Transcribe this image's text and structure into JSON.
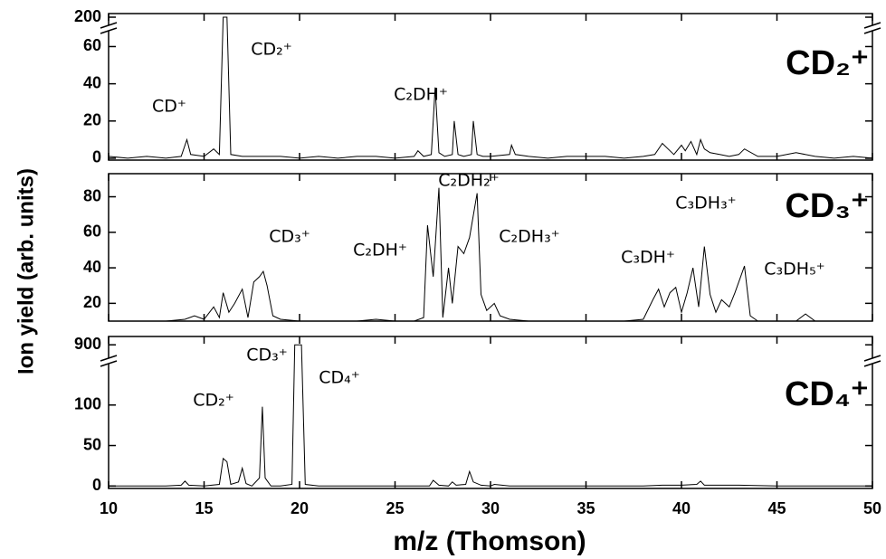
{
  "chart_data": [
    {
      "type": "line",
      "title": "CD₂⁺",
      "annotations": [
        "CD⁺",
        "CD₂⁺",
        "C₂DH⁺"
      ],
      "xlim": [
        10,
        50
      ],
      "xticks": [
        10,
        15,
        20,
        25,
        30,
        35,
        40,
        45,
        50
      ],
      "ylim": [
        -1,
        202
      ],
      "axis_break": [
        68,
        196
      ],
      "yticks": [
        0,
        20,
        40,
        60,
        200
      ],
      "x": [
        10,
        11,
        12,
        13,
        13.8,
        14.1,
        14.3,
        15,
        15.5,
        15.8,
        16,
        16.2,
        16.4,
        17,
        18,
        19,
        20,
        21,
        22,
        23,
        24,
        25,
        26,
        26.2,
        26.5,
        26.9,
        27.1,
        27.3,
        27.6,
        28,
        28.1,
        28.3,
        28.6,
        29,
        29.1,
        29.3,
        29.6,
        30,
        31,
        31.1,
        31.3,
        32,
        33,
        34,
        35,
        36,
        37,
        38,
        38.6,
        39,
        39.3,
        39.6,
        40,
        40.2,
        40.5,
        40.8,
        41,
        41.2,
        41.5,
        42,
        42.5,
        43,
        43.3,
        44,
        45,
        46,
        47,
        48,
        49,
        50
      ],
      "series": [
        {
          "color": "#000000",
          "values": [
            1,
            0,
            1,
            0,
            1,
            10,
            2,
            1,
            5,
            2,
            200,
            200,
            2,
            1,
            1,
            1,
            0,
            1,
            0,
            1,
            1,
            0,
            1,
            4,
            1,
            2,
            38,
            3,
            1,
            2,
            20,
            2,
            1,
            2,
            20,
            2,
            1,
            1,
            2,
            7,
            2,
            1,
            0,
            1,
            1,
            1,
            0,
            1,
            2,
            8,
            5,
            2,
            7,
            4,
            9,
            2,
            10,
            5,
            3,
            2,
            1,
            2,
            5,
            1,
            1,
            3,
            1,
            0,
            1,
            0
          ]
        }
      ]
    },
    {
      "type": "line",
      "title": "CD₃⁺",
      "ylabel": "Ion yield (arb. units)",
      "annotations": [
        "CD₃⁺",
        "C₂DH⁺",
        "C₂DH₂⁺",
        "C₂DH₃⁺",
        "C₃DH⁺",
        "C₃DH₃⁺",
        "C₃DH₅⁺"
      ],
      "xlim": [
        10,
        50
      ],
      "xticks": [
        10,
        15,
        20,
        25,
        30,
        35,
        40,
        45,
        50
      ],
      "ylim": [
        10,
        93
      ],
      "yticks": [
        20,
        40,
        60,
        80
      ],
      "x": [
        10,
        11,
        12,
        13,
        14,
        14.5,
        15,
        15.5,
        15.8,
        16,
        16.3,
        16.6,
        17,
        17.3,
        17.6,
        17.9,
        18.1,
        18.3,
        18.6,
        19,
        20,
        21,
        22,
        23,
        24,
        25,
        26,
        26.5,
        26.7,
        27,
        27.3,
        27.5,
        27.8,
        28,
        28.3,
        28.6,
        28.9,
        29.3,
        29.5,
        29.8,
        30.2,
        30.5,
        31,
        32,
        33,
        34,
        35,
        36,
        37,
        38,
        38.5,
        38.8,
        39.1,
        39.4,
        39.7,
        40,
        40.3,
        40.6,
        40.9,
        41.2,
        41.5,
        41.8,
        42.1,
        42.5,
        42.8,
        43.1,
        43.3,
        43.6,
        44,
        45,
        46,
        46.5,
        47,
        48,
        49,
        50
      ],
      "series": [
        {
          "color": "#000000",
          "values": [
            10,
            10,
            10,
            10,
            11,
            13,
            11,
            18,
            12,
            26,
            15,
            20,
            28,
            12,
            32,
            35,
            38,
            30,
            13,
            11,
            10,
            10,
            10,
            10,
            11,
            10,
            10,
            12,
            64,
            35,
            85,
            12,
            40,
            20,
            52,
            48,
            57,
            82,
            25,
            16,
            20,
            13,
            11,
            10,
            10,
            10,
            10,
            10,
            10,
            11,
            22,
            28,
            18,
            26,
            29,
            15,
            26,
            40,
            18,
            52,
            25,
            15,
            22,
            18,
            26,
            35,
            41,
            13,
            10,
            10,
            10,
            14,
            10,
            10,
            10,
            10
          ]
        }
      ]
    },
    {
      "type": "line",
      "title": "CD₄⁺",
      "xlabel": "m/z (Thomson)",
      "annotations": [
        "CD₃⁺",
        "CD₂⁺",
        "CD₄⁺"
      ],
      "xlim": [
        10,
        50
      ],
      "xticks": [
        10,
        15,
        20,
        25,
        30,
        35,
        40,
        45,
        50
      ],
      "ylim": [
        -3,
        910
      ],
      "axis_break": [
        150,
        885
      ],
      "yticks": [
        0,
        50,
        100,
        900
      ],
      "x": [
        10,
        13,
        13.8,
        14,
        14.2,
        15,
        15.8,
        16,
        16.2,
        16.4,
        16.8,
        17,
        17.2,
        17.5,
        17.9,
        18.05,
        18.2,
        18.5,
        19,
        19.6,
        19.75,
        20.1,
        20.3,
        21,
        22,
        25,
        26.8,
        27,
        27.3,
        27.8,
        28,
        28.2,
        28.7,
        28.9,
        29.1,
        29.5,
        30,
        30.2,
        31,
        35,
        38,
        39,
        40,
        40.8,
        41,
        41.2,
        43,
        45,
        50
      ],
      "series": [
        {
          "color": "#000000",
          "values": [
            0,
            0,
            1,
            6,
            1,
            0,
            2,
            34,
            30,
            2,
            5,
            22,
            3,
            0,
            10,
            98,
            10,
            0,
            0,
            2,
            900,
            900,
            2,
            0,
            0,
            0,
            0,
            7,
            1,
            0,
            5,
            1,
            2,
            18,
            5,
            1,
            0,
            2,
            0,
            0,
            0,
            1,
            1,
            2,
            6,
            1,
            1,
            0,
            0
          ]
        }
      ]
    }
  ]
}
